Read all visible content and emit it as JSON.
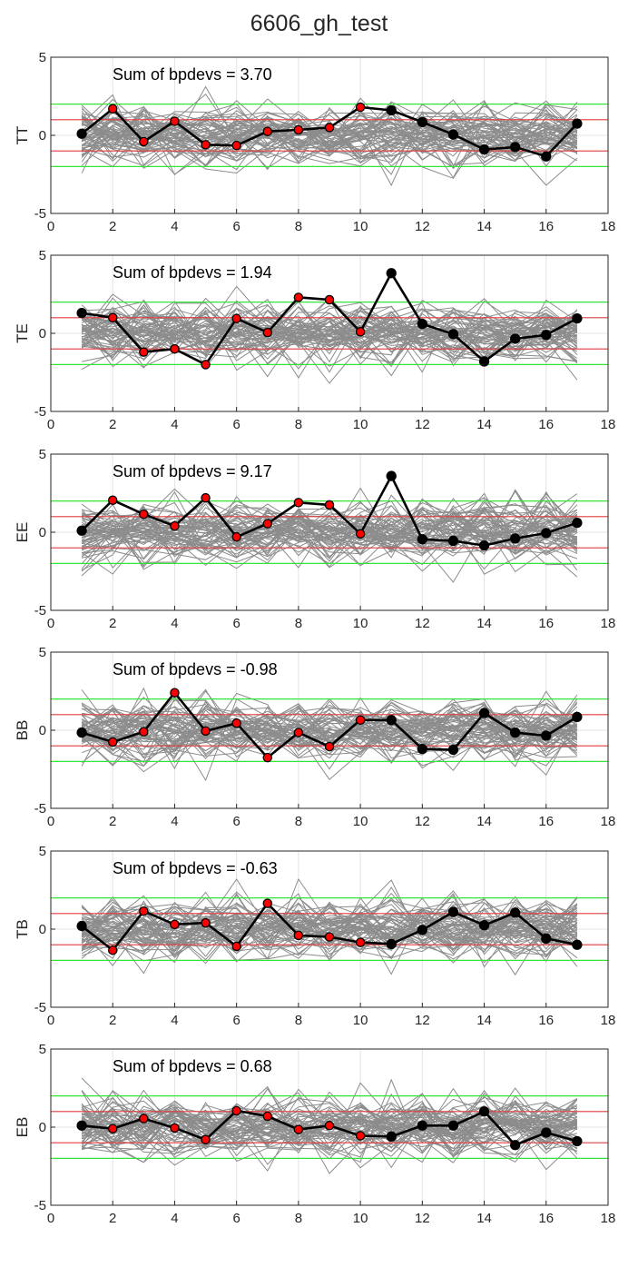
{
  "figure": {
    "title": "6606_gh_test"
  },
  "colors": {
    "background": "#ffffff",
    "axes_frame": "#262626",
    "grid": "#e3e3e3",
    "sim_lines": "#8c8c8c",
    "data_line": "#000000",
    "red_marker": "#ff0000",
    "black_marker": "#000000",
    "red_ref": "#e23b3b",
    "green_ref": "#33e633"
  },
  "chart_data": [
    {
      "type": "line",
      "ylabel": "TT",
      "annotation": "Sum of bpdevs = 3.70",
      "xlim": [
        0,
        18
      ],
      "ylim": [
        -5,
        5
      ],
      "xticks": [
        "0",
        "2",
        "4",
        "6",
        "8",
        "10",
        "12",
        "14",
        "16",
        "18"
      ],
      "yticks": [
        "-5",
        "0",
        "5"
      ],
      "x": [
        1,
        2,
        3,
        4,
        5,
        6,
        7,
        8,
        9,
        10,
        11,
        12,
        13,
        14,
        15,
        16,
        17
      ],
      "values": [
        0.1,
        1.7,
        -0.4,
        0.9,
        -0.6,
        -0.65,
        0.25,
        0.35,
        0.5,
        1.8,
        1.6,
        0.85,
        0.05,
        -0.9,
        -0.75,
        -1.35,
        0.75
      ],
      "marker_colors": [
        "black",
        "red",
        "red",
        "red",
        "red",
        "red",
        "red",
        "red",
        "red",
        "red",
        "black",
        "black",
        "black",
        "black",
        "black",
        "black",
        "black"
      ],
      "red_lines": [
        1,
        -1
      ],
      "green_lines": [
        2,
        -2
      ],
      "grid": true
    },
    {
      "type": "line",
      "ylabel": "TE",
      "annotation": "Sum of bpdevs = 1.94",
      "xlim": [
        0,
        18
      ],
      "ylim": [
        -5,
        5
      ],
      "xticks": [
        "0",
        "2",
        "4",
        "6",
        "8",
        "10",
        "12",
        "14",
        "16",
        "18"
      ],
      "yticks": [
        "-5",
        "0",
        "5"
      ],
      "x": [
        1,
        2,
        3,
        4,
        5,
        6,
        7,
        8,
        9,
        10,
        11,
        12,
        13,
        14,
        15,
        16,
        17
      ],
      "values": [
        1.3,
        1.0,
        -1.2,
        -1.0,
        -2.0,
        0.95,
        0.05,
        2.3,
        2.15,
        0.1,
        3.85,
        0.6,
        -0.05,
        -1.8,
        -0.35,
        -0.1,
        0.95
      ],
      "marker_colors": [
        "black",
        "red",
        "red",
        "red",
        "red",
        "red",
        "red",
        "red",
        "red",
        "red",
        "black",
        "black",
        "black",
        "black",
        "black",
        "black",
        "black"
      ],
      "red_lines": [
        1,
        -1
      ],
      "green_lines": [
        2,
        -2
      ],
      "grid": true
    },
    {
      "type": "line",
      "ylabel": "EE",
      "annotation": "Sum of bpdevs = 9.17",
      "xlim": [
        0,
        18
      ],
      "ylim": [
        -5,
        5
      ],
      "xticks": [
        "0",
        "2",
        "4",
        "6",
        "8",
        "10",
        "12",
        "14",
        "16",
        "18"
      ],
      "yticks": [
        "-5",
        "0",
        "5"
      ],
      "x": [
        1,
        2,
        3,
        4,
        5,
        6,
        7,
        8,
        9,
        10,
        11,
        12,
        13,
        14,
        15,
        16,
        17
      ],
      "values": [
        0.1,
        2.05,
        1.15,
        0.4,
        2.2,
        -0.3,
        0.55,
        1.9,
        1.75,
        -0.1,
        3.6,
        -0.45,
        -0.55,
        -0.85,
        -0.4,
        -0.05,
        0.6
      ],
      "marker_colors": [
        "black",
        "red",
        "red",
        "red",
        "red",
        "red",
        "red",
        "red",
        "red",
        "red",
        "black",
        "black",
        "black",
        "black",
        "black",
        "black",
        "black"
      ],
      "red_lines": [
        1,
        -1
      ],
      "green_lines": [
        2,
        -2
      ],
      "grid": true
    },
    {
      "type": "line",
      "ylabel": "BB",
      "annotation": "Sum of bpdevs = -0.98",
      "xlim": [
        0,
        18
      ],
      "ylim": [
        -5,
        5
      ],
      "xticks": [
        "0",
        "2",
        "4",
        "6",
        "8",
        "10",
        "12",
        "14",
        "16",
        "18"
      ],
      "yticks": [
        "-5",
        "0",
        "5"
      ],
      "x": [
        1,
        2,
        3,
        4,
        5,
        6,
        7,
        8,
        9,
        10,
        11,
        12,
        13,
        14,
        15,
        16,
        17
      ],
      "values": [
        -0.15,
        -0.75,
        -0.1,
        2.4,
        -0.05,
        0.45,
        -1.75,
        -0.15,
        -1.05,
        0.65,
        0.65,
        -1.2,
        -1.25,
        1.1,
        -0.15,
        -0.35,
        0.85
      ],
      "marker_colors": [
        "black",
        "red",
        "red",
        "red",
        "red",
        "red",
        "red",
        "red",
        "red",
        "red",
        "black",
        "black",
        "black",
        "black",
        "black",
        "black",
        "black"
      ],
      "red_lines": [
        1,
        -1
      ],
      "green_lines": [
        2,
        -2
      ],
      "grid": true
    },
    {
      "type": "line",
      "ylabel": "TB",
      "annotation": "Sum of bpdevs = -0.63",
      "xlim": [
        0,
        18
      ],
      "ylim": [
        -5,
        5
      ],
      "xticks": [
        "0",
        "2",
        "4",
        "6",
        "8",
        "10",
        "12",
        "14",
        "16",
        "18"
      ],
      "yticks": [
        "-5",
        "0",
        "5"
      ],
      "x": [
        1,
        2,
        3,
        4,
        5,
        6,
        7,
        8,
        9,
        10,
        11,
        12,
        13,
        14,
        15,
        16,
        17
      ],
      "values": [
        0.2,
        -1.35,
        1.15,
        0.3,
        0.4,
        -1.1,
        1.65,
        -0.4,
        -0.5,
        -0.85,
        -0.95,
        -0.05,
        1.1,
        0.25,
        1.05,
        -0.6,
        -1.0
      ],
      "marker_colors": [
        "black",
        "red",
        "red",
        "red",
        "red",
        "red",
        "red",
        "red",
        "red",
        "red",
        "black",
        "black",
        "black",
        "black",
        "black",
        "black",
        "black"
      ],
      "red_lines": [
        1,
        -1
      ],
      "green_lines": [
        2,
        -2
      ],
      "grid": true
    },
    {
      "type": "line",
      "ylabel": "EB",
      "annotation": "Sum of bpdevs = 0.68",
      "xlim": [
        0,
        18
      ],
      "ylim": [
        -5,
        5
      ],
      "xticks": [
        "0",
        "2",
        "4",
        "6",
        "8",
        "10",
        "12",
        "14",
        "16",
        "18"
      ],
      "yticks": [
        "-5",
        "0",
        "5"
      ],
      "x": [
        1,
        2,
        3,
        4,
        5,
        6,
        7,
        8,
        9,
        10,
        11,
        12,
        13,
        14,
        15,
        16,
        17
      ],
      "values": [
        0.1,
        -0.1,
        0.55,
        -0.05,
        -0.8,
        1.05,
        0.7,
        -0.15,
        0.1,
        -0.55,
        -0.6,
        0.1,
        0.1,
        1.0,
        -1.15,
        -0.35,
        -0.9
      ],
      "marker_colors": [
        "black",
        "red",
        "red",
        "red",
        "red",
        "red",
        "red",
        "red",
        "red",
        "red",
        "black",
        "black",
        "black",
        "black",
        "black",
        "black",
        "black"
      ],
      "red_lines": [
        1,
        -1
      ],
      "green_lines": [
        2,
        -2
      ],
      "grid": true
    }
  ]
}
